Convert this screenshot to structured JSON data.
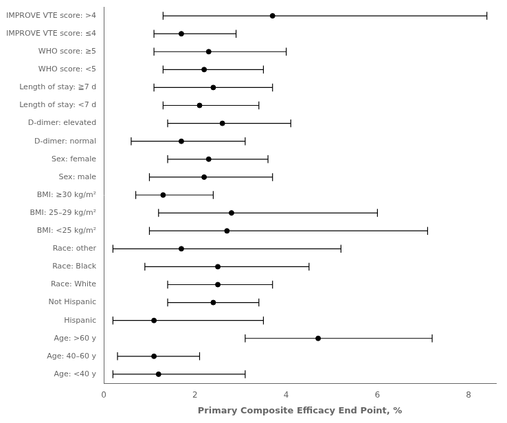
{
  "chart_data": {
    "type": "forest",
    "categories": [
      "IMPROVE VTE score: >4",
      "IMPROVE VTE score: ≤4",
      "WHO score: ≥5",
      "WHO score: <5",
      "Length of stay: ≧7 d",
      "Length of stay: <7 d",
      "D-dimer: elevated",
      "D-dimer: normal",
      "Sex: female",
      "Sex: male",
      "BMI: ≥30 kg/m²",
      "BMI: 25–29 kg/m²",
      "BMI: <25 kg/m²",
      "Race: other",
      "Race: Black",
      "Race: White",
      "Not Hispanic",
      "Hispanic",
      "Age: >60 y",
      "Age: 40–60 y",
      "Age: <40 y"
    ],
    "values": [
      3.7,
      1.7,
      2.3,
      2.2,
      2.4,
      2.1,
      2.6,
      1.7,
      2.3,
      2.2,
      1.3,
      2.8,
      2.7,
      1.7,
      2.5,
      2.5,
      2.4,
      1.1,
      4.7,
      1.1,
      1.2
    ],
    "lower": [
      1.3,
      1.1,
      1.1,
      1.3,
      1.1,
      1.3,
      1.4,
      0.6,
      1.4,
      1.0,
      0.7,
      1.2,
      1.0,
      0.2,
      0.9,
      1.4,
      1.4,
      0.2,
      3.1,
      0.3,
      0.2
    ],
    "upper": [
      8.4,
      2.9,
      4.0,
      3.5,
      3.7,
      3.4,
      4.1,
      3.1,
      3.6,
      3.7,
      2.4,
      6.0,
      7.1,
      5.2,
      4.5,
      3.7,
      3.4,
      3.5,
      7.2,
      2.1,
      3.1
    ],
    "xlabel": "Primary Composite Efficacy End Point, %",
    "xlim": [
      0,
      8.6
    ],
    "xticks": [
      0,
      2,
      4,
      6,
      8
    ],
    "color": "black",
    "grid": false
  }
}
